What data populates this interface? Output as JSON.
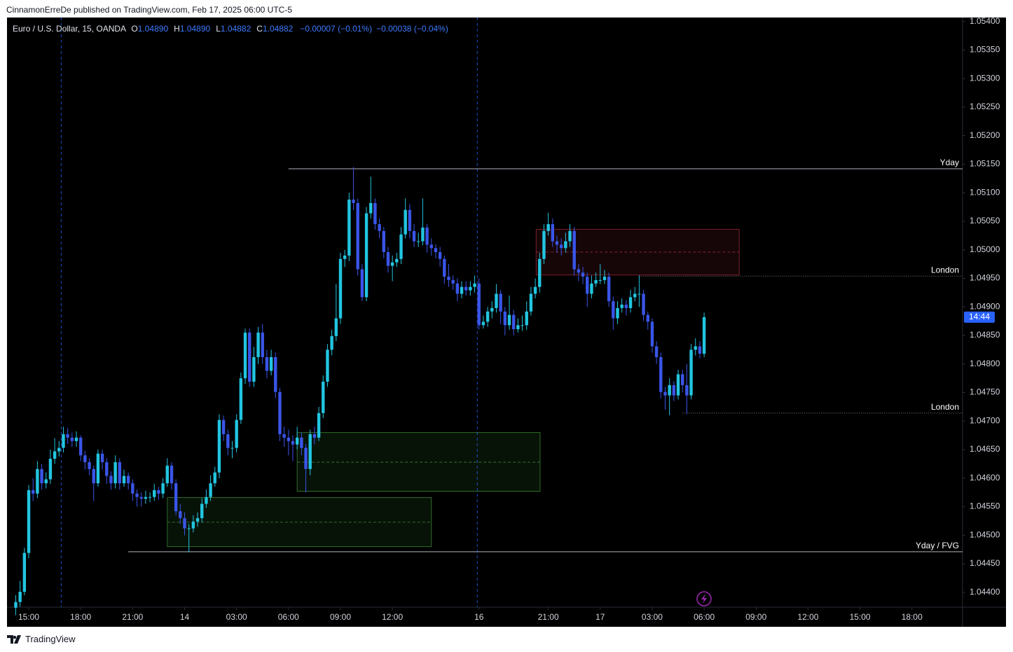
{
  "header": {
    "publisher": "CinnamonErreDe published on TradingView.com, Feb 17, 2025 06:00 UTC-5",
    "footer": "TradingView"
  },
  "chart_data": {
    "type": "candlestick",
    "title": "Euro / U.S. Dollar, 15, OANDA",
    "ohlc": [
      {
        "key": "O",
        "value": "1.04890"
      },
      {
        "key": "H",
        "value": "1.04890"
      },
      {
        "key": "L",
        "value": "1.04882"
      },
      {
        "key": "C",
        "value": "1.04882"
      }
    ],
    "changes": [
      "−0.00007 (−0.01%)",
      "−0.00038 (−0.04%)"
    ],
    "up_color": "#22c5e0",
    "down_color": "#3a55e8",
    "candles": [
      [
        1.04373,
        1.04395,
        1.0436,
        1.04383
      ],
      [
        1.04383,
        1.0442,
        1.04375,
        1.04401
      ],
      [
        1.04401,
        1.04478,
        1.04395,
        1.04469
      ],
      [
        1.04469,
        1.04588,
        1.0446,
        1.04579
      ],
      [
        1.04579,
        1.046,
        1.0456,
        1.04573
      ],
      [
        1.04573,
        1.0463,
        1.04565,
        1.04616
      ],
      [
        1.04616,
        1.04625,
        1.0458,
        1.04591
      ],
      [
        1.04591,
        1.0461,
        1.04582,
        1.04598
      ],
      [
        1.04598,
        1.0465,
        1.0459,
        1.04634
      ],
      [
        1.04634,
        1.0467,
        1.04625,
        1.04647
      ],
      [
        1.04647,
        1.04665,
        1.04638,
        1.04653
      ],
      [
        1.04653,
        1.0469,
        1.04645,
        1.04677
      ],
      [
        1.04677,
        1.04688,
        1.0466,
        1.04671
      ],
      [
        1.04671,
        1.0468,
        1.04655,
        1.04665
      ],
      [
        1.04665,
        1.04682,
        1.04655,
        1.04671
      ],
      [
        1.04671,
        1.04675,
        1.0463,
        1.0464
      ],
      [
        1.0464,
        1.04648,
        1.04615,
        1.04628
      ],
      [
        1.04628,
        1.04635,
        1.04605,
        1.04616
      ],
      [
        1.04616,
        1.04622,
        1.0456,
        1.04591
      ],
      [
        1.04591,
        1.0465,
        1.04585,
        1.04643
      ],
      [
        1.04643,
        1.0465,
        1.04615,
        1.04628
      ],
      [
        1.04628,
        1.04635,
        1.0459,
        1.04604
      ],
      [
        1.04604,
        1.04612,
        1.0458,
        1.04591
      ],
      [
        1.04591,
        1.0464,
        1.04582,
        1.04628
      ],
      [
        1.04628,
        1.04635,
        1.0458,
        1.04591
      ],
      [
        1.04591,
        1.04615,
        1.04585,
        1.04604
      ],
      [
        1.04604,
        1.0461,
        1.0458,
        1.04591
      ],
      [
        1.04591,
        1.04598,
        1.0456,
        1.04573
      ],
      [
        1.04573,
        1.0458,
        1.0455,
        1.04567
      ],
      [
        1.04567,
        1.04575,
        1.0455,
        1.04564
      ],
      [
        1.04564,
        1.04578,
        1.04555,
        1.04567
      ],
      [
        1.04567,
        1.04575,
        1.04558,
        1.04567
      ],
      [
        1.04567,
        1.0459,
        1.0456,
        1.04579
      ],
      [
        1.04579,
        1.04585,
        1.04562,
        1.04573
      ],
      [
        1.04573,
        1.046,
        1.04565,
        1.04591
      ],
      [
        1.04591,
        1.04635,
        1.04585,
        1.04622
      ],
      [
        1.04622,
        1.04628,
        1.0458,
        1.04591
      ],
      [
        1.04591,
        1.04598,
        1.04535,
        1.04542
      ],
      [
        1.04542,
        1.04555,
        1.0452,
        1.0453
      ],
      [
        1.0453,
        1.0454,
        1.045,
        1.04512
      ],
      [
        1.04512,
        1.0452,
        1.0447,
        1.04512
      ],
      [
        1.04512,
        1.04535,
        1.04505,
        1.04524
      ],
      [
        1.04524,
        1.0454,
        1.04515,
        1.0453
      ],
      [
        1.0453,
        1.04565,
        1.04522,
        1.04555
      ],
      [
        1.04555,
        1.0458,
        1.04548,
        1.04567
      ],
      [
        1.04567,
        1.04605,
        1.0456,
        1.04591
      ],
      [
        1.04591,
        1.0462,
        1.04585,
        1.0461
      ],
      [
        1.0461,
        1.04712,
        1.046,
        1.04702
      ],
      [
        1.04702,
        1.0471,
        1.04665,
        1.04677
      ],
      [
        1.04677,
        1.04685,
        1.0464,
        1.04653
      ],
      [
        1.04653,
        1.04665,
        1.04635,
        1.04653
      ],
      [
        1.04653,
        1.04712,
        1.04645,
        1.04702
      ],
      [
        1.04702,
        1.04785,
        1.04695,
        1.04775
      ],
      [
        1.04775,
        1.04862,
        1.04765,
        1.04855
      ],
      [
        1.04855,
        1.04862,
        1.0476,
        1.04769
      ],
      [
        1.04769,
        1.0483,
        1.0476,
        1.04812
      ],
      [
        1.04812,
        1.04865,
        1.048,
        1.04855
      ],
      [
        1.04855,
        1.0487,
        1.048,
        1.04812
      ],
      [
        1.04812,
        1.04825,
        1.04775,
        1.04788
      ],
      [
        1.04788,
        1.04825,
        1.0478,
        1.04812
      ],
      [
        1.04812,
        1.0482,
        1.0474,
        1.04751
      ],
      [
        1.04751,
        1.04758,
        1.04665,
        1.04677
      ],
      [
        1.04677,
        1.0469,
        1.04655,
        1.04671
      ],
      [
        1.04671,
        1.04685,
        1.0464,
        1.04665
      ],
      [
        1.04665,
        1.04675,
        1.0463,
        1.04659
      ],
      [
        1.04659,
        1.0469,
        1.0465,
        1.04671
      ],
      [
        1.04671,
        1.0468,
        1.0464,
        1.04653
      ],
      [
        1.04653,
        1.0466,
        1.04575,
        1.04616
      ],
      [
        1.04616,
        1.04685,
        1.04605,
        1.04677
      ],
      [
        1.04677,
        1.0469,
        1.0466,
        1.04671
      ],
      [
        1.04671,
        1.04725,
        1.04665,
        1.04714
      ],
      [
        1.04714,
        1.0478,
        1.04705,
        1.04769
      ],
      [
        1.04769,
        1.04835,
        1.0476,
        1.04825
      ],
      [
        1.04825,
        1.0486,
        1.04815,
        1.04849
      ],
      [
        1.04849,
        1.0494,
        1.0484,
        1.0488
      ],
      [
        1.0488,
        1.04995,
        1.0487,
        1.04984
      ],
      [
        1.04984,
        1.05,
        1.0497,
        1.0499
      ],
      [
        1.0499,
        1.051,
        1.0498,
        1.05088
      ],
      [
        1.05088,
        1.05145,
        1.0507,
        1.05082
      ],
      [
        1.05082,
        1.0509,
        1.04955,
        1.04966
      ],
      [
        1.04966,
        1.04975,
        1.0491,
        1.04917
      ],
      [
        1.04917,
        1.05075,
        1.0491,
        1.05064
      ],
      [
        1.05064,
        1.05128,
        1.05055,
        1.05082
      ],
      [
        1.05082,
        1.0509,
        1.05035,
        1.05045
      ],
      [
        1.05045,
        1.05055,
        1.0502,
        1.05033
      ],
      [
        1.05033,
        1.0504,
        1.04985,
        1.04996
      ],
      [
        1.04996,
        1.05005,
        1.0496,
        1.04972
      ],
      [
        1.04972,
        1.0499,
        1.04945,
        1.04978
      ],
      [
        1.04978,
        1.04995,
        1.0497,
        1.04984
      ],
      [
        1.04984,
        1.0504,
        1.04975,
        1.05027
      ],
      [
        1.05027,
        1.0509,
        1.0502,
        1.0507
      ],
      [
        1.0507,
        1.0508,
        1.0502,
        1.05033
      ],
      [
        1.05033,
        1.05045,
        1.05005,
        1.05015
      ],
      [
        1.05015,
        1.0503,
        1.05005,
        1.05015
      ],
      [
        1.05015,
        1.0509,
        1.05008,
        1.05039
      ],
      [
        1.05039,
        1.05045,
        1.04995,
        1.05009
      ],
      [
        1.05009,
        1.0502,
        1.0499,
        1.05003
      ],
      [
        1.05003,
        1.0501,
        1.04985,
        1.04996
      ],
      [
        1.04996,
        1.05005,
        1.0497,
        1.04984
      ],
      [
        1.04984,
        1.0499,
        1.0494,
        1.04953
      ],
      [
        1.04953,
        1.04975,
        1.04935,
        1.04947
      ],
      [
        1.04947,
        1.04955,
        1.0493,
        1.04941
      ],
      [
        1.04941,
        1.0495,
        1.0491,
        1.04923
      ],
      [
        1.04923,
        1.04945,
        1.04915,
        1.04935
      ],
      [
        1.04935,
        1.04945,
        1.0492,
        1.04929
      ],
      [
        1.04929,
        1.04945,
        1.0492,
        1.04935
      ],
      [
        1.04935,
        1.04955,
        1.04925,
        1.04941
      ],
      [
        1.04941,
        1.0495,
        1.0486,
        1.04868
      ],
      [
        1.04868,
        1.04885,
        1.04862,
        1.04874
      ],
      [
        1.04874,
        1.049,
        1.04865,
        1.04892
      ],
      [
        1.04892,
        1.0491,
        1.0488,
        1.04898
      ],
      [
        1.04898,
        1.0494,
        1.0489,
        1.04923
      ],
      [
        1.04923,
        1.0493,
        1.0487,
        1.04892
      ],
      [
        1.04892,
        1.049,
        1.0485,
        1.04868
      ],
      [
        1.04868,
        1.0492,
        1.0486,
        1.04886
      ],
      [
        1.04886,
        1.04895,
        1.0485,
        1.04861
      ],
      [
        1.04861,
        1.0488,
        1.04855,
        1.04868
      ],
      [
        1.04868,
        1.04885,
        1.04858,
        1.04868
      ],
      [
        1.04868,
        1.0491,
        1.0486,
        1.04892
      ],
      [
        1.04892,
        1.04935,
        1.04885,
        1.04923
      ],
      [
        1.04923,
        1.0495,
        1.04915,
        1.04935
      ],
      [
        1.04935,
        1.04995,
        1.04925,
        1.04984
      ],
      [
        1.04984,
        1.05045,
        1.04975,
        1.05033
      ],
      [
        1.05033,
        1.05065,
        1.05025,
        1.05045
      ],
      [
        1.05045,
        1.05055,
        1.05005,
        1.05015
      ],
      [
        1.05015,
        1.05025,
        1.04995,
        1.05009
      ],
      [
        1.05009,
        1.0502,
        1.0499,
        1.05003
      ],
      [
        1.05003,
        1.0503,
        1.04995,
        1.05015
      ],
      [
        1.05015,
        1.05045,
        1.05005,
        1.05033
      ],
      [
        1.05033,
        1.0504,
        1.04955,
        1.04966
      ],
      [
        1.04966,
        1.04975,
        1.04945,
        1.0496
      ],
      [
        1.0496,
        1.0497,
        1.0494,
        1.04953
      ],
      [
        1.04953,
        1.0496,
        1.049,
        1.04923
      ],
      [
        1.04923,
        1.04955,
        1.04915,
        1.04941
      ],
      [
        1.04941,
        1.0496,
        1.04935,
        1.04947
      ],
      [
        1.04947,
        1.04975,
        1.0494,
        1.04947
      ],
      [
        1.04947,
        1.04965,
        1.0494,
        1.04953
      ],
      [
        1.04953,
        1.0496,
        1.049,
        1.0491
      ],
      [
        1.0491,
        1.04918,
        1.0486,
        1.0488
      ],
      [
        1.0488,
        1.0491,
        1.0487,
        1.04898
      ],
      [
        1.04898,
        1.04915,
        1.0489,
        1.04904
      ],
      [
        1.04904,
        1.04912,
        1.04885,
        1.04898
      ],
      [
        1.04898,
        1.0493,
        1.0489,
        1.04917
      ],
      [
        1.04917,
        1.04935,
        1.0491,
        1.04923
      ],
      [
        1.04923,
        1.04955,
        1.049,
        1.04923
      ],
      [
        1.04923,
        1.0493,
        1.04875,
        1.04886
      ],
      [
        1.04886,
        1.04892,
        1.0486,
        1.04874
      ],
      [
        1.04874,
        1.0488,
        1.0482,
        1.04831
      ],
      [
        1.04831,
        1.0484,
        1.048,
        1.04812
      ],
      [
        1.04812,
        1.0482,
        1.0474,
        1.04751
      ],
      [
        1.04751,
        1.0476,
        1.0472,
        1.04745
      ],
      [
        1.04745,
        1.04775,
        1.0471,
        1.04763
      ],
      [
        1.04763,
        1.0477,
        1.04735,
        1.04745
      ],
      [
        1.04745,
        1.0479,
        1.04738,
        1.04782
      ],
      [
        1.04782,
        1.0479,
        1.0475,
        1.04763
      ],
      [
        1.04763,
        1.048,
        1.04712,
        1.04745
      ],
      [
        1.04745,
        1.04835,
        1.04738,
        1.04825
      ],
      [
        1.04825,
        1.04845,
        1.04815,
        1.04831
      ],
      [
        1.04831,
        1.0484,
        1.0481,
        1.04818
      ],
      [
        1.04818,
        1.0489,
        1.04812,
        1.04882
      ]
    ],
    "xlim": [
      -2.02,
      218.69
    ],
    "xticks": [
      {
        "value": 3,
        "label": "15:00"
      },
      {
        "value": 15,
        "label": "18:00"
      },
      {
        "value": 27,
        "label": "21:00"
      },
      {
        "value": 39,
        "label": "14"
      },
      {
        "value": 51,
        "label": "03:00"
      },
      {
        "value": 63,
        "label": "06:00"
      },
      {
        "value": 75,
        "label": "09:00"
      },
      {
        "value": 87,
        "label": "12:00"
      },
      {
        "value": 107,
        "label": "16"
      },
      {
        "value": 123,
        "label": "21:00"
      },
      {
        "value": 135,
        "label": "17"
      },
      {
        "value": 147,
        "label": "03:00"
      },
      {
        "value": 159,
        "label": "06:00"
      },
      {
        "value": 171,
        "label": "09:00"
      },
      {
        "value": 183,
        "label": "12:00"
      },
      {
        "value": 195,
        "label": "15:00"
      },
      {
        "value": 207,
        "label": "18:00"
      }
    ],
    "ylim": [
      1.04374,
      1.05407
    ],
    "yticks": [
      {
        "value": 1.044,
        "label": "1.04400"
      },
      {
        "value": 1.0445,
        "label": "1.04450"
      },
      {
        "value": 1.045,
        "label": "1.04500"
      },
      {
        "value": 1.0455,
        "label": "1.04550"
      },
      {
        "value": 1.046,
        "label": "1.04600"
      },
      {
        "value": 1.0465,
        "label": "1.04650"
      },
      {
        "value": 1.047,
        "label": "1.04700"
      },
      {
        "value": 1.0475,
        "label": "1.04750"
      },
      {
        "value": 1.048,
        "label": "1.04800"
      },
      {
        "value": 1.0485,
        "label": "1.04850"
      },
      {
        "value": 1.049,
        "label": "1.04900"
      },
      {
        "value": 1.0495,
        "label": "1.04950"
      },
      {
        "value": 1.05,
        "label": "1.05000"
      },
      {
        "value": 1.0505,
        "label": "1.05050"
      },
      {
        "value": 1.051,
        "label": "1.05100"
      },
      {
        "value": 1.0515,
        "label": "1.05150"
      },
      {
        "value": 1.052,
        "label": "1.05200"
      },
      {
        "value": 1.0525,
        "label": "1.05250"
      },
      {
        "value": 1.053,
        "label": "1.05300"
      },
      {
        "value": 1.0535,
        "label": "1.05350"
      },
      {
        "value": 1.054,
        "label": "1.05400"
      }
    ],
    "session_lines": [
      10.5,
      106.6
    ],
    "levels": [
      {
        "label": "Yday",
        "value": 1.05142,
        "from": 63,
        "style": "solid",
        "color": "#b2b5be"
      },
      {
        "label": "Yday / FVG",
        "value": 1.04471,
        "from": 26,
        "style": "solid",
        "color": "#b2b5be"
      },
      {
        "label": "London",
        "value": 1.04954,
        "from": 144,
        "style": "dotted",
        "color": "#787b86"
      },
      {
        "label": "London",
        "value": 1.04714,
        "from": 154,
        "style": "dotted",
        "color": "#787b86"
      }
    ],
    "zones": [
      {
        "from": 120.2,
        "to": 167.1,
        "top": 1.05036,
        "bottom": 1.04956,
        "mid": 1.04996,
        "color": "#7a1f2b"
      },
      {
        "from": 65,
        "to": 121.1,
        "top": 1.0468,
        "bottom": 1.04577,
        "mid": 1.04628,
        "color": "#2f6b2a"
      },
      {
        "from": 35,
        "to": 96,
        "top": 1.04566,
        "bottom": 1.0448,
        "mid": 1.04523,
        "color": "#2f6b2a"
      }
    ],
    "last_price": 1.04882,
    "countdown": "14:44"
  }
}
